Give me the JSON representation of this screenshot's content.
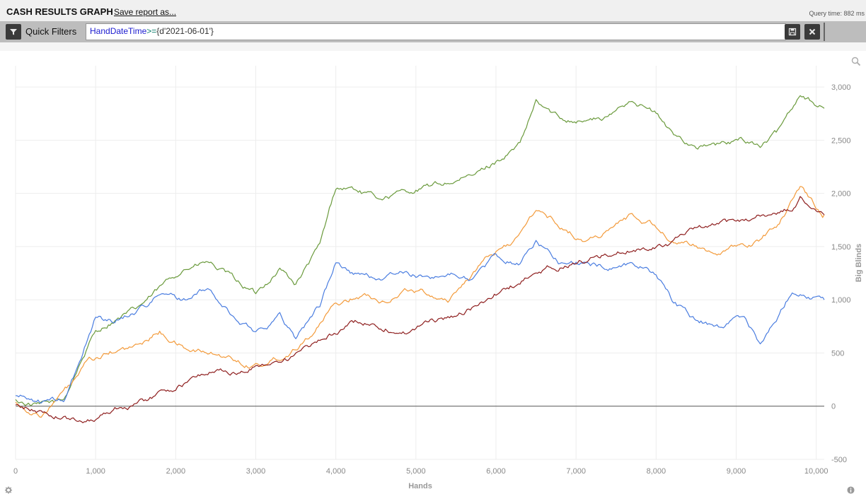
{
  "header": {
    "title": "CASH RESULTS GRAPH",
    "save_label": "Save report as...",
    "query_time": "Query time: 882 ms"
  },
  "filter_bar": {
    "label": "Quick Filters",
    "expr_key": "HandDateTime",
    "expr_op": ">=",
    "expr_val": "{d'2021-06-01'}",
    "icons": {
      "filter": "filter-icon",
      "save": "save-icon",
      "clear": "close-icon"
    }
  },
  "chart_data": {
    "type": "line",
    "xlabel": "Hands",
    "ylabel": "Big Blinds",
    "xlim": [
      0,
      10100
    ],
    "ylim": [
      -500,
      3200
    ],
    "x_ticks": [
      0,
      1000,
      2000,
      3000,
      4000,
      5000,
      6000,
      7000,
      8000,
      9000,
      10000
    ],
    "x_tick_labels": [
      "0",
      "1,000",
      "2,000",
      "3,000",
      "4,000",
      "5,000",
      "6,000",
      "7,000",
      "8,000",
      "9,000",
      "10,000"
    ],
    "y_ticks": [
      -500,
      0,
      500,
      1000,
      1500,
      2000,
      2500,
      3000
    ],
    "y_tick_labels": [
      "-500",
      "0",
      "500",
      "1,000",
      "1,500",
      "2,000",
      "2,500",
      "3,000"
    ],
    "grid": true,
    "series": [
      {
        "color": "#6a9a3c",
        "x": [
          0,
          300,
          600,
          800,
          1000,
          1200,
          1500,
          1800,
          2100,
          2400,
          2700,
          3000,
          3300,
          3500,
          3800,
          4000,
          4200,
          4500,
          4800,
          5100,
          5400,
          5700,
          6000,
          6300,
          6500,
          6800,
          7100,
          7400,
          7700,
          8000,
          8200,
          8500,
          8800,
          9100,
          9300,
          9500,
          9800,
          10100
        ],
        "y": [
          50,
          0,
          50,
          400,
          700,
          800,
          900,
          1100,
          1300,
          1350,
          1200,
          1050,
          1300,
          1150,
          1500,
          2050,
          2050,
          1950,
          2000,
          2050,
          2100,
          2150,
          2300,
          2450,
          2850,
          2700,
          2700,
          2700,
          2900,
          2750,
          2550,
          2450,
          2450,
          2500,
          2450,
          2550,
          2950,
          2800
        ]
      },
      {
        "color": "#f39a3a",
        "x": [
          0,
          300,
          500,
          700,
          900,
          1200,
          1500,
          1800,
          2100,
          2400,
          2700,
          2900,
          3100,
          3400,
          3700,
          4000,
          4300,
          4600,
          4900,
          5200,
          5400,
          5700,
          6000,
          6300,
          6500,
          6800,
          7100,
          7400,
          7700,
          8000,
          8200,
          8500,
          8800,
          9100,
          9300,
          9500,
          9800,
          10100
        ],
        "y": [
          50,
          -100,
          50,
          200,
          400,
          500,
          550,
          700,
          550,
          500,
          450,
          400,
          400,
          500,
          700,
          950,
          1050,
          1000,
          1100,
          1050,
          1000,
          1250,
          1450,
          1600,
          1850,
          1700,
          1550,
          1650,
          1800,
          1700,
          1550,
          1500,
          1450,
          1500,
          1550,
          1700,
          2050,
          1800
        ]
      },
      {
        "color": "#4a7de0",
        "x": [
          0,
          300,
          600,
          800,
          1000,
          1200,
          1500,
          1800,
          2100,
          2400,
          2700,
          3000,
          3300,
          3500,
          3800,
          4000,
          4200,
          4500,
          4800,
          5100,
          5400,
          5700,
          6000,
          6300,
          6500,
          6800,
          7100,
          7400,
          7700,
          8000,
          8200,
          8500,
          8800,
          9100,
          9300,
          9500,
          9700,
          10100
        ],
        "y": [
          100,
          50,
          50,
          400,
          850,
          800,
          900,
          1050,
          1000,
          1100,
          850,
          700,
          850,
          650,
          950,
          1350,
          1250,
          1200,
          1250,
          1200,
          1250,
          1200,
          1400,
          1350,
          1550,
          1350,
          1350,
          1300,
          1350,
          1250,
          1000,
          800,
          750,
          850,
          600,
          800,
          1100,
          1000
        ]
      },
      {
        "color": "#8e1e1e",
        "x": [
          0,
          300,
          600,
          800,
          1000,
          1300,
          1600,
          1900,
          2200,
          2500,
          2800,
          3100,
          3400,
          3700,
          4000,
          4300,
          4600,
          4900,
          5200,
          5500,
          5800,
          6100,
          6400,
          6700,
          7000,
          7300,
          7600,
          7900,
          8200,
          8500,
          8800,
          9100,
          9400,
          9700,
          9800,
          10100
        ],
        "y": [
          0,
          -50,
          -100,
          -150,
          -100,
          0,
          50,
          150,
          250,
          350,
          300,
          400,
          450,
          550,
          700,
          800,
          750,
          700,
          800,
          850,
          950,
          1100,
          1200,
          1300,
          1350,
          1400,
          1450,
          1500,
          1550,
          1650,
          1700,
          1750,
          1800,
          1850,
          1950,
          1800
        ]
      }
    ]
  }
}
